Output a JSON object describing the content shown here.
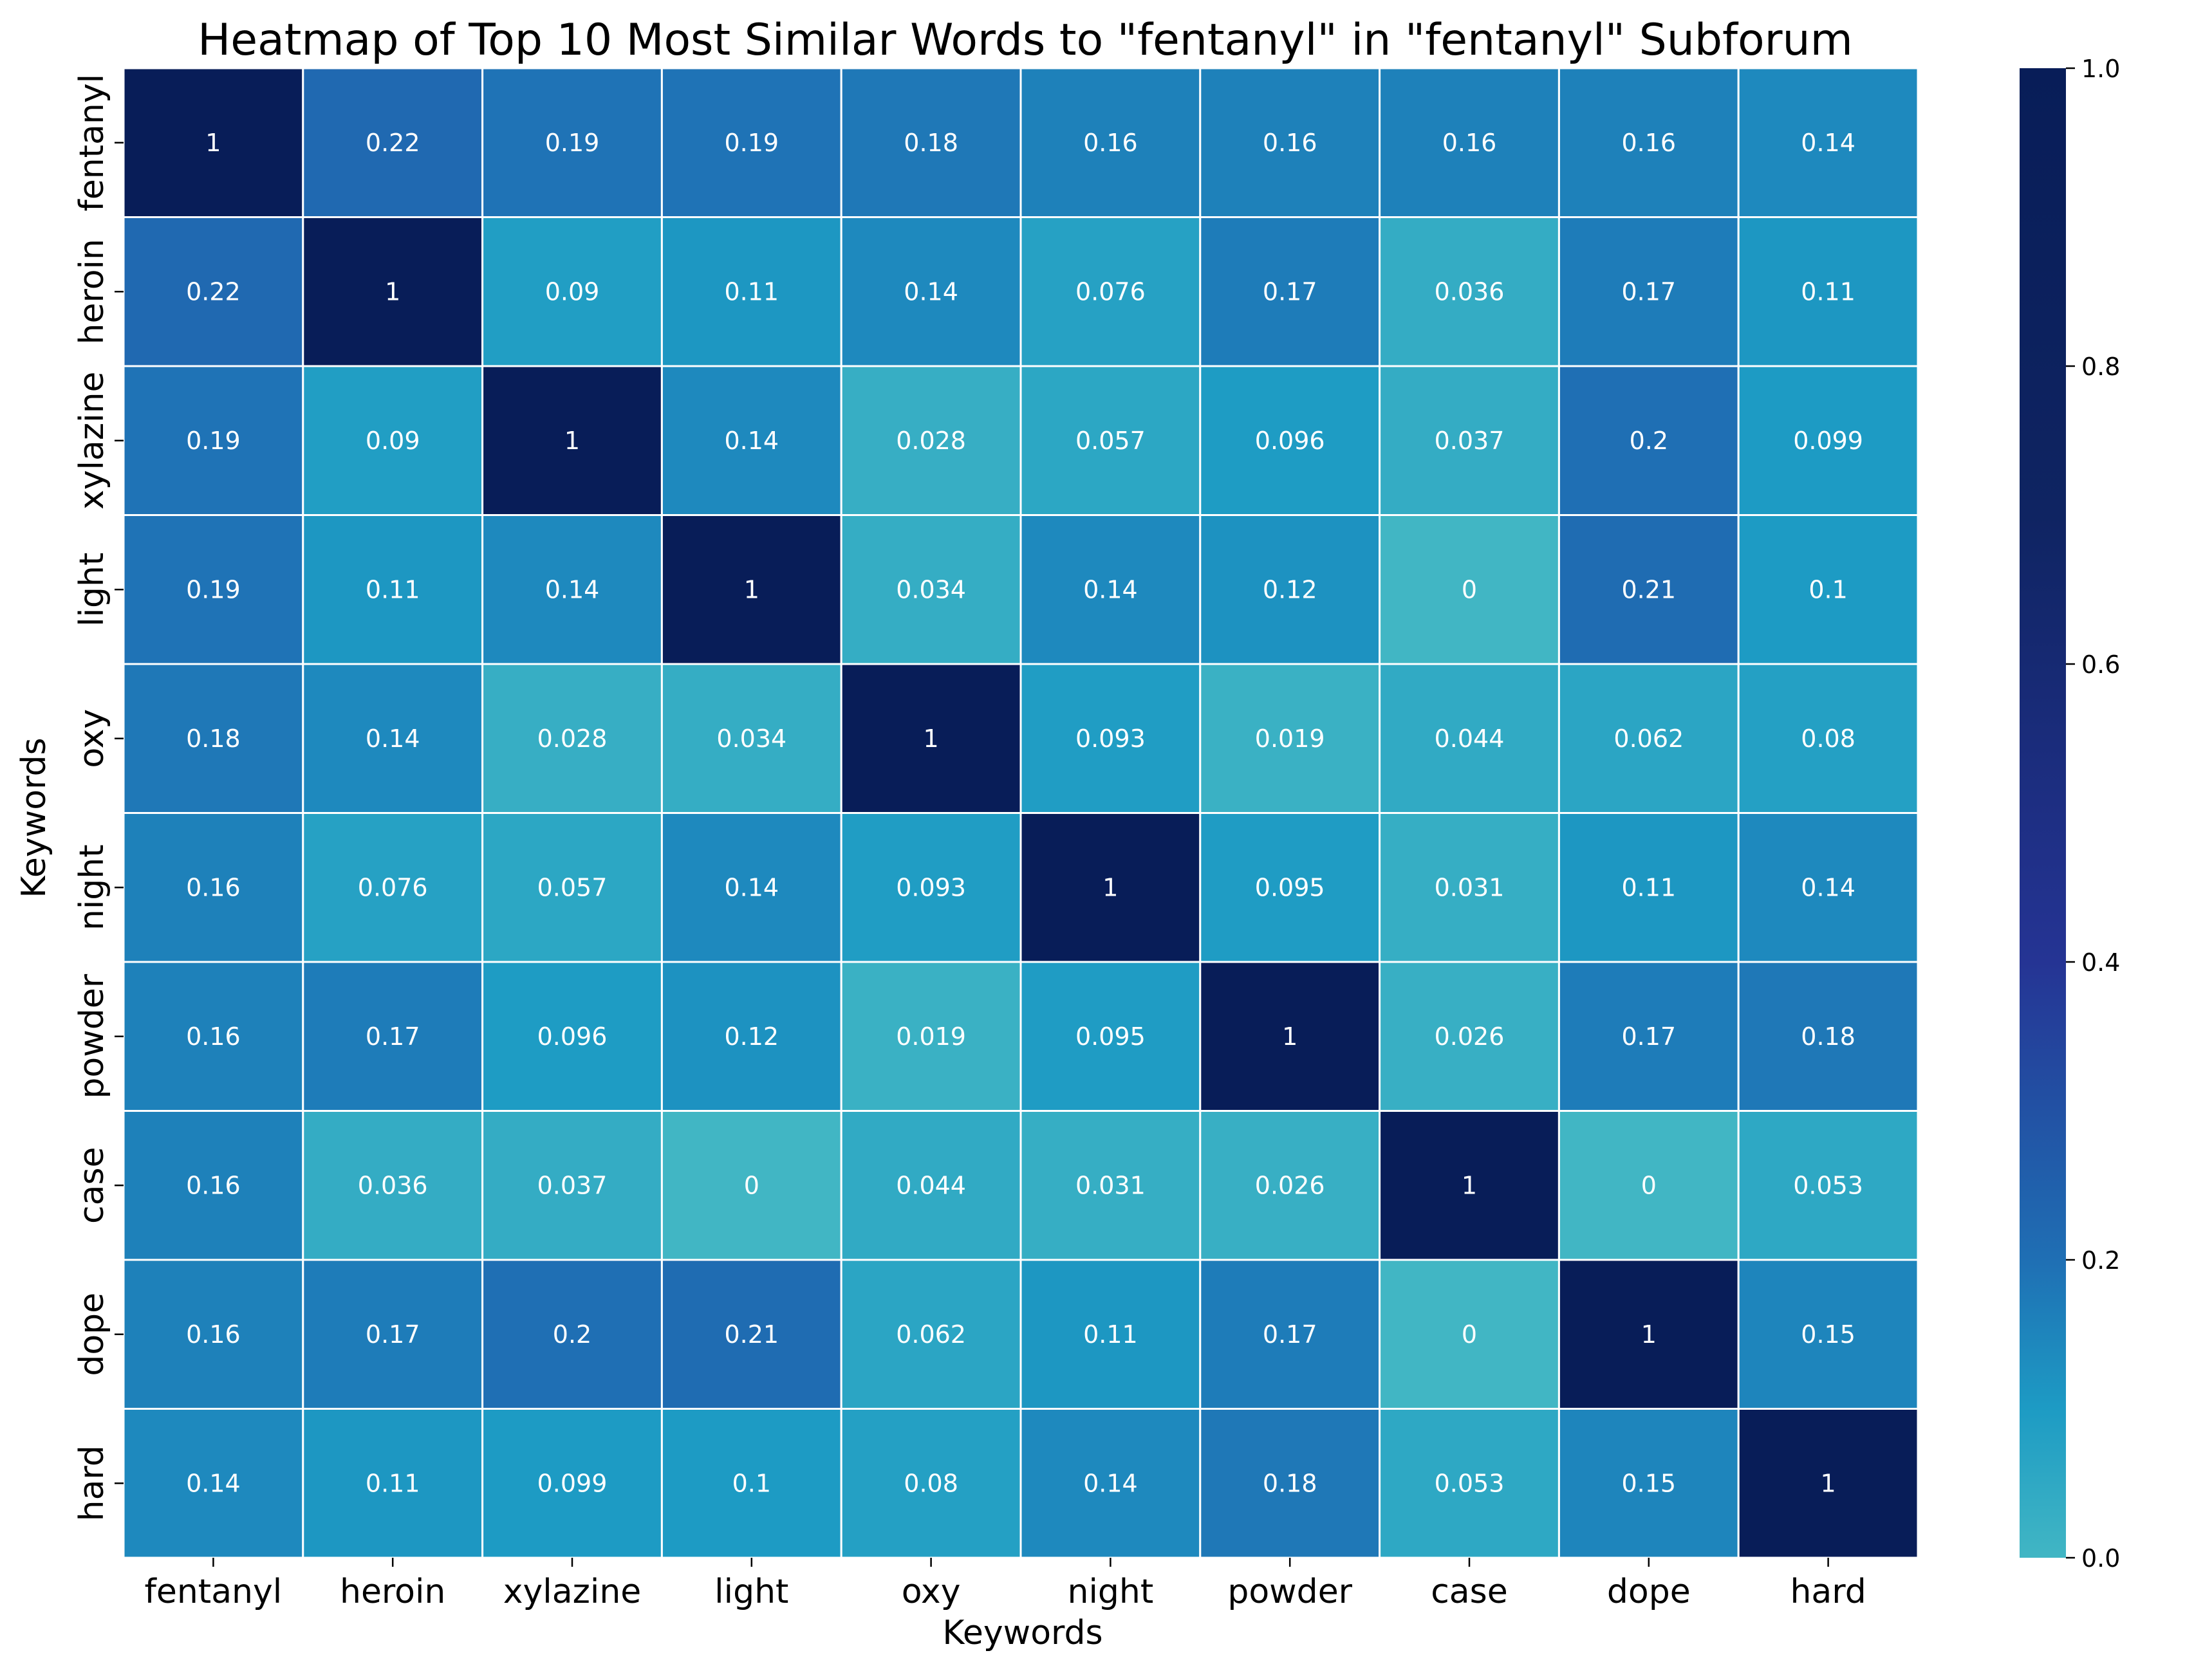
{
  "chart_data": {
    "type": "heatmap",
    "title": "Heatmap of Top 10 Most Similar Words to \"fentanyl\" in \"fentanyl\" Subforum",
    "xlabel": "Keywords",
    "ylabel": "Keywords",
    "x_categories": [
      "fentanyl",
      "heroin",
      "xylazine",
      "light",
      "oxy",
      "night",
      "powder",
      "case",
      "dope",
      "hard"
    ],
    "y_categories": [
      "fentanyl",
      "heroin",
      "xylazine",
      "light",
      "oxy",
      "night",
      "powder",
      "case",
      "dope",
      "hard"
    ],
    "values": [
      [
        1,
        0.22,
        0.19,
        0.19,
        0.18,
        0.16,
        0.16,
        0.16,
        0.16,
        0.14
      ],
      [
        0.22,
        1,
        0.09,
        0.11,
        0.14,
        0.076,
        0.17,
        0.036,
        0.17,
        0.11
      ],
      [
        0.19,
        0.09,
        1,
        0.14,
        0.028,
        0.057,
        0.096,
        0.037,
        0.2,
        0.099
      ],
      [
        0.19,
        0.11,
        0.14,
        1,
        0.034,
        0.14,
        0.12,
        0,
        0.21,
        0.1
      ],
      [
        0.18,
        0.14,
        0.028,
        0.034,
        1,
        0.093,
        0.019,
        0.044,
        0.062,
        0.08
      ],
      [
        0.16,
        0.076,
        0.057,
        0.14,
        0.093,
        1,
        0.095,
        0.031,
        0.11,
        0.14
      ],
      [
        0.16,
        0.17,
        0.096,
        0.12,
        0.019,
        0.095,
        1,
        0.026,
        0.17,
        0.18
      ],
      [
        0.16,
        0.036,
        0.037,
        0,
        0.044,
        0.031,
        0.026,
        1,
        0,
        0.053
      ],
      [
        0.16,
        0.17,
        0.2,
        0.21,
        0.062,
        0.11,
        0.17,
        0,
        1,
        0.15
      ],
      [
        0.14,
        0.11,
        0.099,
        0.1,
        0.08,
        0.14,
        0.18,
        0.053,
        0.15,
        1
      ]
    ],
    "colorbar": {
      "range": [
        0,
        1
      ],
      "ticks": [
        "0.0",
        "0.2",
        "0.4",
        "0.6",
        "0.8",
        "1.0"
      ],
      "colormap": "YlGnBu (cyan to navy)",
      "stops": [
        {
          "v": 0.0,
          "c": "#41b6c4"
        },
        {
          "v": 0.1,
          "c": "#1d9bc4"
        },
        {
          "v": 0.2,
          "c": "#1f6fb4"
        },
        {
          "v": 0.4,
          "c": "#253494"
        },
        {
          "v": 0.7,
          "c": "#0f2462"
        },
        {
          "v": 1.0,
          "c": "#081d58"
        }
      ]
    },
    "grid": true,
    "cell_text_color": "#ffffff",
    "cell_border_color": "#ffffff"
  }
}
